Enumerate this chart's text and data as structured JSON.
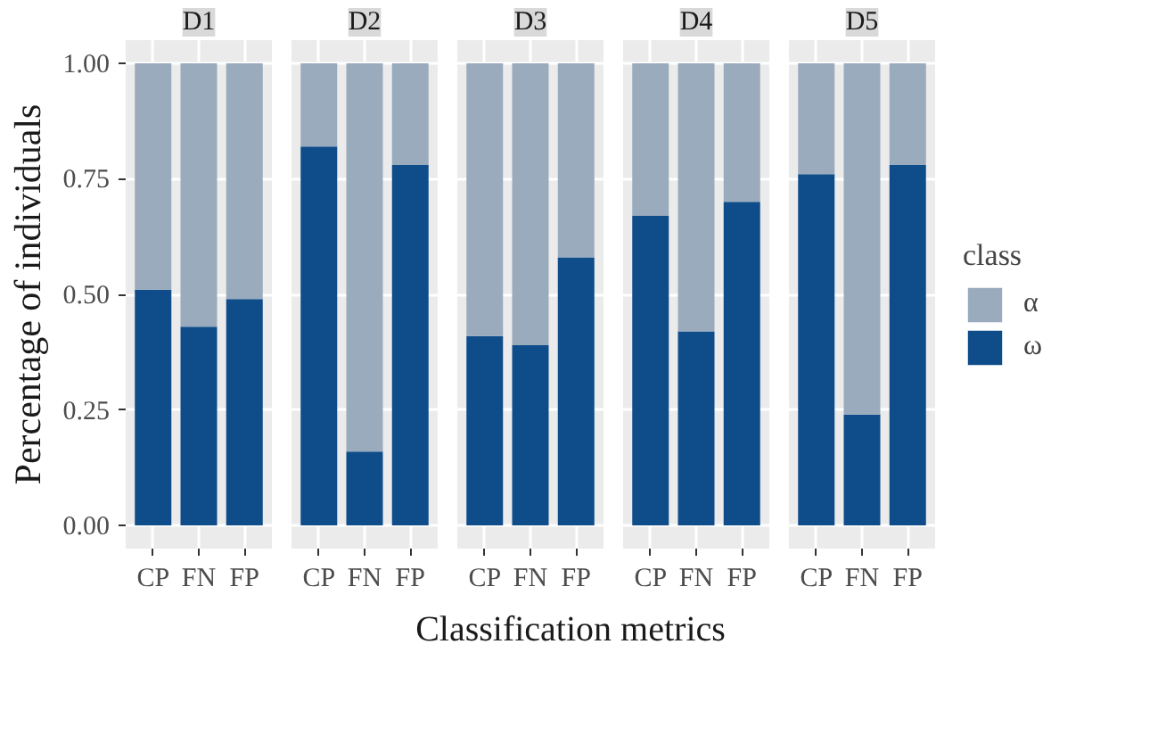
{
  "chart_data": [
    {
      "type": "bar",
      "title": "D1",
      "ylabel": "Percentage of individuals",
      "categories": [
        "CP",
        "FN",
        "FP"
      ],
      "stacked": true,
      "ylim": [
        -0.05,
        1.05
      ],
      "yticks": [
        {
          "value": 0,
          "label": "0.00"
        },
        {
          "value": 0.25,
          "label": "0.25"
        },
        {
          "value": 0.5,
          "label": "0.50"
        },
        {
          "value": 0.75,
          "label": "0.75"
        },
        {
          "value": 1,
          "label": "1.00"
        }
      ],
      "grid": true,
      "series": [
        {
          "color": "#0e4c8a",
          "values": [
            0.51,
            0.43,
            0.49
          ]
        },
        {
          "color": "#9aabbd",
          "values": [
            0.49,
            0.57,
            0.51
          ]
        }
      ]
    },
    {
      "type": "bar",
      "title": "D2",
      "categories": [
        "CP",
        "FN",
        "FP"
      ],
      "stacked": true,
      "ylim": [
        -0.05,
        1.05
      ],
      "yticks": [
        {
          "value": 0,
          "label": null
        },
        {
          "value": 0.25,
          "label": null
        },
        {
          "value": 0.5,
          "label": null
        },
        {
          "value": 0.75,
          "label": null
        },
        {
          "value": 1,
          "label": null
        }
      ],
      "grid": true,
      "tick_labels": "x",
      "series": [
        {
          "color": "#0e4c8a",
          "values": [
            0.82,
            0.16,
            0.78
          ]
        },
        {
          "color": "#9aabbd",
          "values": [
            0.18,
            0.84,
            0.22
          ]
        }
      ]
    },
    {
      "type": "bar",
      "title": "D3",
      "xlabel": "Classification metrics",
      "categories": [
        "CP",
        "FN",
        "FP"
      ],
      "stacked": true,
      "ylim": [
        -0.05,
        1.05
      ],
      "yticks": [
        {
          "value": 0,
          "label": null
        },
        {
          "value": 0.25,
          "label": null
        },
        {
          "value": 0.5,
          "label": null
        },
        {
          "value": 0.75,
          "label": null
        },
        {
          "value": 1,
          "label": null
        }
      ],
      "grid": true,
      "tick_labels": "x",
      "series": [
        {
          "color": "#0e4c8a",
          "values": [
            0.41,
            0.39,
            0.58
          ]
        },
        {
          "color": "#9aabbd",
          "values": [
            0.59,
            0.61,
            0.42
          ]
        }
      ]
    },
    {
      "type": "bar",
      "title": "D4",
      "categories": [
        "CP",
        "FN",
        "FP"
      ],
      "stacked": true,
      "ylim": [
        -0.05,
        1.05
      ],
      "yticks": [
        {
          "value": 0,
          "label": null
        },
        {
          "value": 0.25,
          "label": null
        },
        {
          "value": 0.5,
          "label": null
        },
        {
          "value": 0.75,
          "label": null
        },
        {
          "value": 1,
          "label": null
        }
      ],
      "grid": true,
      "tick_labels": "x",
      "series": [
        {
          "color": "#0e4c8a",
          "values": [
            0.67,
            0.42,
            0.7
          ]
        },
        {
          "color": "#9aabbd",
          "values": [
            0.33,
            0.58,
            0.3
          ]
        }
      ]
    },
    {
      "type": "bar",
      "title": "D5",
      "categories": [
        "CP",
        "FN",
        "FP"
      ],
      "stacked": true,
      "ylim": [
        -0.05,
        1.05
      ],
      "yticks": [
        {
          "value": 0,
          "label": null
        },
        {
          "value": 0.25,
          "label": null
        },
        {
          "value": 0.5,
          "label": null
        },
        {
          "value": 0.75,
          "label": null
        },
        {
          "value": 1,
          "label": null
        }
      ],
      "grid": true,
      "tick_labels": "x",
      "legend": "right",
      "legend_title": "class",
      "series": [
        {
          "name": "ω",
          "color": "#0e4c8a",
          "values": [
            0.76,
            0.24,
            0.78
          ]
        },
        {
          "name": "α",
          "color": "#9aabbd",
          "values": [
            0.24,
            0.76,
            0.22
          ]
        }
      ]
    }
  ]
}
